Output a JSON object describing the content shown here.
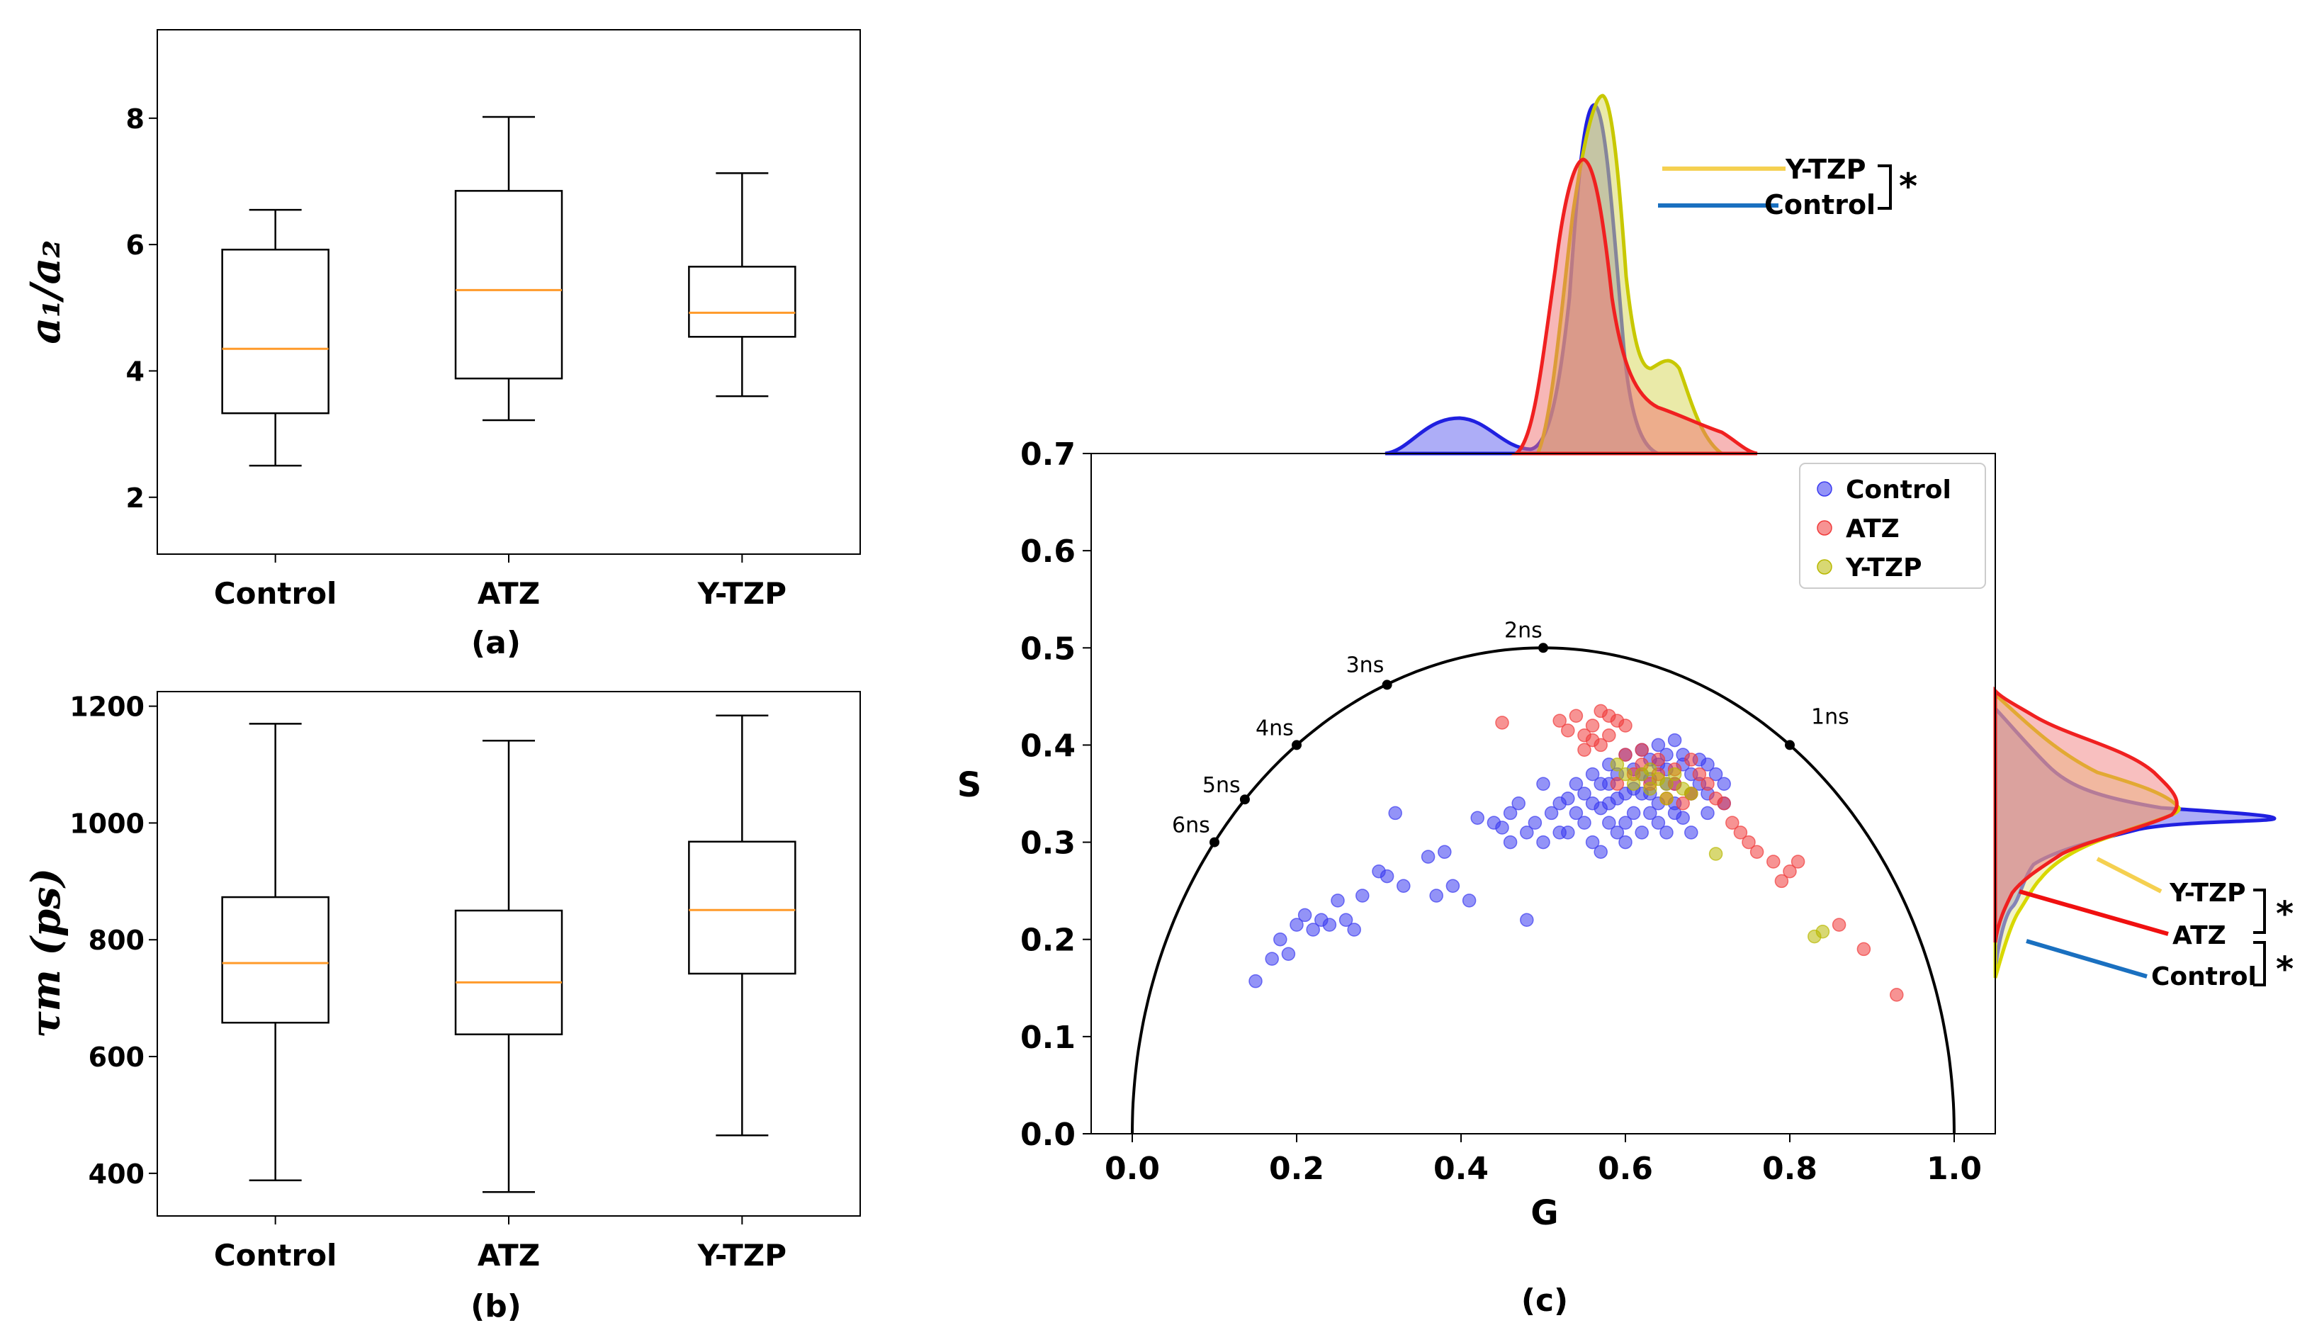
{
  "chart_data": [
    {
      "id": "a",
      "type": "box",
      "panel_label": "(a)",
      "ylabel": "a₁/a₂",
      "ylim": [
        1.1,
        9.4
      ],
      "yticks": [
        2,
        4,
        6,
        8
      ],
      "categories": [
        "Control",
        "ATZ",
        "Y-TZP"
      ],
      "boxes": [
        {
          "whisker_low": 2.5,
          "q1": 3.33,
          "median": 4.35,
          "q3": 5.92,
          "whisker_high": 6.55
        },
        {
          "whisker_low": 3.22,
          "q1": 3.88,
          "median": 5.28,
          "q3": 6.85,
          "whisker_high": 8.02
        },
        {
          "whisker_low": 3.6,
          "q1": 4.54,
          "median": 4.92,
          "q3": 5.65,
          "whisker_high": 7.13
        }
      ]
    },
    {
      "id": "b",
      "type": "box",
      "panel_label": "(b)",
      "ylabel": "τm (ps)",
      "ylim": [
        327,
        1225
      ],
      "yticks": [
        400,
        600,
        800,
        1000,
        1200
      ],
      "categories": [
        "Control",
        "ATZ",
        "Y-TZP"
      ],
      "boxes": [
        {
          "whisker_low": 388,
          "q1": 658,
          "median": 760,
          "q3": 873,
          "whisker_high": 1170
        },
        {
          "whisker_low": 368,
          "q1": 638,
          "median": 727,
          "q3": 850,
          "whisker_high": 1141
        },
        {
          "whisker_low": 465,
          "q1": 742,
          "median": 851,
          "q3": 968,
          "whisker_high": 1184
        }
      ]
    },
    {
      "id": "c",
      "type": "scatter",
      "panel_label": "(c)",
      "xlabel": "G",
      "ylabel": "S",
      "xlim": [
        -0.05,
        1.05
      ],
      "ylim": [
        0,
        0.7
      ],
      "xticks": [
        "0.0",
        "0.2",
        "0.4",
        "0.6",
        "0.8",
        "1.0"
      ],
      "yticks": [
        "0.0",
        "0.1",
        "0.2",
        "0.3",
        "0.4",
        "0.5",
        "0.6",
        "0.7"
      ],
      "legend": [
        {
          "label": "Control",
          "color": "#3b3bf0"
        },
        {
          "label": "ATZ",
          "color": "#f03b3b"
        },
        {
          "label": "Y-TZP",
          "color": "#b8b800"
        }
      ],
      "lifetime_marks": [
        {
          "label": "1ns",
          "g": 0.8,
          "s": 0.4
        },
        {
          "label": "2ns",
          "g": 0.5,
          "s": 0.5
        },
        {
          "label": "3ns",
          "g": 0.31,
          "s": 0.462
        },
        {
          "label": "4ns",
          "g": 0.2,
          "s": 0.4
        },
        {
          "label": "5ns",
          "g": 0.137,
          "s": 0.344
        },
        {
          "label": "6ns",
          "g": 0.1,
          "s": 0.3
        }
      ],
      "series": [
        {
          "name": "Control",
          "points": [
            [
              0.15,
              0.157
            ],
            [
              0.17,
              0.18
            ],
            [
              0.18,
              0.2
            ],
            [
              0.2,
              0.215
            ],
            [
              0.19,
              0.185
            ],
            [
              0.21,
              0.225
            ],
            [
              0.22,
              0.21
            ],
            [
              0.23,
              0.22
            ],
            [
              0.24,
              0.215
            ],
            [
              0.25,
              0.24
            ],
            [
              0.26,
              0.22
            ],
            [
              0.27,
              0.21
            ],
            [
              0.28,
              0.245
            ],
            [
              0.3,
              0.27
            ],
            [
              0.31,
              0.265
            ],
            [
              0.33,
              0.255
            ],
            [
              0.36,
              0.285
            ],
            [
              0.38,
              0.29
            ],
            [
              0.39,
              0.255
            ],
            [
              0.41,
              0.24
            ],
            [
              0.37,
              0.245
            ],
            [
              0.32,
              0.33
            ],
            [
              0.42,
              0.325
            ],
            [
              0.44,
              0.32
            ],
            [
              0.45,
              0.315
            ],
            [
              0.46,
              0.33
            ],
            [
              0.47,
              0.34
            ],
            [
              0.48,
              0.31
            ],
            [
              0.5,
              0.3
            ],
            [
              0.49,
              0.32
            ],
            [
              0.51,
              0.33
            ],
            [
              0.52,
              0.31
            ],
            [
              0.53,
              0.345
            ],
            [
              0.54,
              0.33
            ],
            [
              0.55,
              0.35
            ],
            [
              0.56,
              0.3
            ],
            [
              0.57,
              0.29
            ],
            [
              0.58,
              0.36
            ],
            [
              0.59,
              0.31
            ],
            [
              0.6,
              0.35
            ],
            [
              0.61,
              0.33
            ],
            [
              0.62,
              0.37
            ],
            [
              0.63,
              0.35
            ],
            [
              0.64,
              0.38
            ],
            [
              0.65,
              0.36
            ],
            [
              0.66,
              0.34
            ],
            [
              0.67,
              0.39
            ],
            [
              0.68,
              0.37
            ],
            [
              0.69,
              0.36
            ],
            [
              0.7,
              0.35
            ],
            [
              0.71,
              0.37
            ],
            [
              0.72,
              0.36
            ],
            [
              0.6,
              0.39
            ],
            [
              0.62,
              0.395
            ],
            [
              0.64,
              0.4
            ],
            [
              0.66,
              0.405
            ],
            [
              0.65,
              0.39
            ],
            [
              0.63,
              0.365
            ],
            [
              0.61,
              0.355
            ],
            [
              0.59,
              0.345
            ],
            [
              0.57,
              0.335
            ],
            [
              0.58,
              0.32
            ],
            [
              0.6,
              0.3
            ],
            [
              0.62,
              0.31
            ],
            [
              0.64,
              0.32
            ],
            [
              0.66,
              0.33
            ],
            [
              0.68,
              0.31
            ],
            [
              0.7,
              0.33
            ],
            [
              0.72,
              0.34
            ],
            [
              0.69,
              0.385
            ],
            [
              0.67,
              0.38
            ],
            [
              0.65,
              0.375
            ],
            [
              0.63,
              0.385
            ],
            [
              0.61,
              0.375
            ],
            [
              0.59,
              0.37
            ],
            [
              0.57,
              0.36
            ],
            [
              0.55,
              0.32
            ],
            [
              0.53,
              0.31
            ],
            [
              0.56,
              0.37
            ],
            [
              0.58,
              0.38
            ],
            [
              0.5,
              0.36
            ],
            [
              0.48,
              0.22
            ],
            [
              0.46,
              0.3
            ],
            [
              0.62,
              0.35
            ],
            [
              0.64,
              0.34
            ],
            [
              0.66,
              0.36
            ],
            [
              0.68,
              0.35
            ],
            [
              0.7,
              0.38
            ],
            [
              0.63,
              0.33
            ],
            [
              0.65,
              0.31
            ],
            [
              0.67,
              0.325
            ],
            [
              0.6,
              0.32
            ],
            [
              0.58,
              0.34
            ],
            [
              0.56,
              0.34
            ],
            [
              0.54,
              0.36
            ],
            [
              0.52,
              0.34
            ]
          ]
        },
        {
          "name": "ATZ",
          "points": [
            [
              0.45,
              0.423
            ],
            [
              0.52,
              0.425
            ],
            [
              0.53,
              0.415
            ],
            [
              0.54,
              0.43
            ],
            [
              0.55,
              0.41
            ],
            [
              0.56,
              0.42
            ],
            [
              0.57,
              0.435
            ],
            [
              0.58,
              0.41
            ],
            [
              0.59,
              0.425
            ],
            [
              0.6,
              0.42
            ],
            [
              0.57,
              0.4
            ],
            [
              0.55,
              0.395
            ],
            [
              0.6,
              0.39
            ],
            [
              0.62,
              0.38
            ],
            [
              0.64,
              0.37
            ],
            [
              0.66,
              0.36
            ],
            [
              0.68,
              0.35
            ],
            [
              0.7,
              0.36
            ],
            [
              0.72,
              0.34
            ],
            [
              0.74,
              0.31
            ],
            [
              0.75,
              0.3
            ],
            [
              0.76,
              0.29
            ],
            [
              0.78,
              0.28
            ],
            [
              0.79,
              0.26
            ],
            [
              0.8,
              0.27
            ],
            [
              0.81,
              0.28
            ],
            [
              0.86,
              0.215
            ],
            [
              0.89,
              0.19
            ],
            [
              0.93,
              0.143
            ],
            [
              0.63,
              0.36
            ],
            [
              0.65,
              0.345
            ],
            [
              0.67,
              0.34
            ],
            [
              0.61,
              0.37
            ],
            [
              0.59,
              0.36
            ],
            [
              0.69,
              0.37
            ],
            [
              0.71,
              0.345
            ],
            [
              0.73,
              0.32
            ],
            [
              0.62,
              0.395
            ],
            [
              0.64,
              0.385
            ],
            [
              0.66,
              0.375
            ],
            [
              0.68,
              0.385
            ],
            [
              0.58,
              0.43
            ],
            [
              0.56,
              0.405
            ]
          ]
        },
        {
          "name": "Y-TZP",
          "points": [
            [
              0.59,
              0.38
            ],
            [
              0.6,
              0.37
            ],
            [
              0.62,
              0.37
            ],
            [
              0.63,
              0.375
            ],
            [
              0.64,
              0.365
            ],
            [
              0.65,
              0.36
            ],
            [
              0.66,
              0.37
            ],
            [
              0.67,
              0.355
            ],
            [
              0.68,
              0.35
            ],
            [
              0.61,
              0.36
            ],
            [
              0.63,
              0.355
            ],
            [
              0.65,
              0.345
            ],
            [
              0.71,
              0.288
            ],
            [
              0.83,
              0.203
            ],
            [
              0.84,
              0.208
            ]
          ]
        }
      ]
    }
  ],
  "marginal_top": {
    "annotations": [
      "Y-TZP",
      "Control"
    ],
    "star": "*"
  },
  "marginal_right": {
    "annotations": [
      "Y-TZP",
      "ATZ",
      "Control"
    ],
    "stars": [
      "*",
      "*"
    ]
  }
}
